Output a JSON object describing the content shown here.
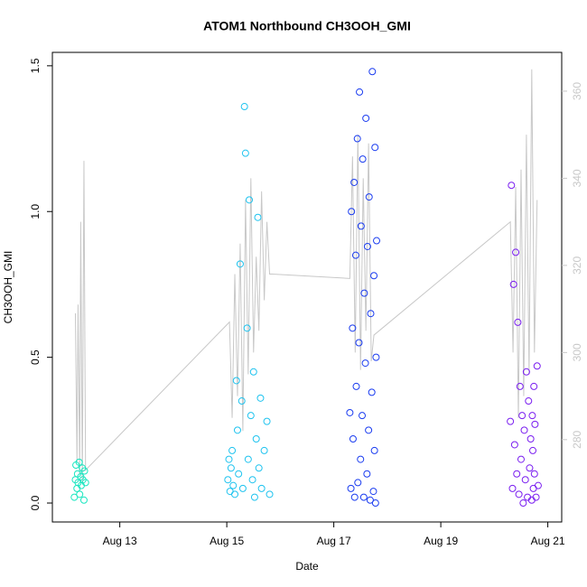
{
  "chart_data": {
    "type": "scatter",
    "title": "ATOM1 Northbound CH3OOH_GMI",
    "x_label": "Date",
    "y_label": "CH3OOH_GMI",
    "xlim": [
      11.74,
      21.26
    ],
    "ylim": [
      -0.065,
      1.546
    ],
    "y2lim": [
      261.1,
      368.9
    ],
    "xticks": [
      {
        "value": 13,
        "label": "Aug 13"
      },
      {
        "value": 15,
        "label": "Aug 15"
      },
      {
        "value": 17,
        "label": "Aug 17"
      },
      {
        "value": 19,
        "label": "Aug 19"
      },
      {
        "value": 21,
        "label": "Aug 21"
      }
    ],
    "yticks": [
      {
        "value": 0,
        "label": "0.0"
      },
      {
        "value": 0.5,
        "label": "0.5"
      },
      {
        "value": 1,
        "label": "1.0"
      },
      {
        "value": 1.5,
        "label": "1.5"
      }
    ],
    "y2ticks": [
      280,
      300,
      320,
      340,
      360
    ],
    "y2_color": "#c8c8c8",
    "series": [
      {
        "color": "#19e6c0",
        "x": [
          12.15,
          12.17,
          12.18,
          12.2,
          12.21,
          12.22,
          12.24,
          12.25,
          12.27,
          12.28,
          12.3,
          12.31,
          12.33,
          12.34,
          12.36
        ],
        "values": [
          0.02,
          0.08,
          0.13,
          0.05,
          0.1,
          0.07,
          0.14,
          0.03,
          0.09,
          0.06,
          0.12,
          0.08,
          0.01,
          0.11,
          0.07
        ]
      },
      {
        "color": "#1ec3ef",
        "x": [
          15.02,
          15.04,
          15.06,
          15.08,
          15.1,
          15.12,
          15.15,
          15.18,
          15.2,
          15.22,
          15.25,
          15.28,
          15.3,
          15.33,
          15.35,
          15.38,
          15.4,
          15.42,
          15.45,
          15.48,
          15.5,
          15.52,
          15.55,
          15.58,
          15.6,
          15.63,
          15.65,
          15.7,
          15.75,
          15.8
        ],
        "values": [
          0.08,
          0.15,
          0.04,
          0.12,
          0.18,
          0.06,
          0.03,
          0.42,
          0.25,
          0.1,
          0.82,
          0.35,
          0.05,
          1.36,
          1.2,
          0.6,
          0.15,
          1.04,
          0.3,
          0.08,
          0.45,
          0.02,
          0.22,
          0.98,
          0.12,
          0.36,
          0.05,
          0.18,
          0.28,
          0.03
        ]
      },
      {
        "color": "#1a3cf0",
        "x": [
          17.3,
          17.32,
          17.33,
          17.35,
          17.36,
          17.38,
          17.39,
          17.41,
          17.42,
          17.44,
          17.45,
          17.47,
          17.48,
          17.5,
          17.51,
          17.53,
          17.54,
          17.56,
          17.57,
          17.59,
          17.6,
          17.62,
          17.63,
          17.65,
          17.66,
          17.68,
          17.69,
          17.71,
          17.72,
          17.74,
          17.75,
          17.76,
          17.77,
          17.78,
          17.79,
          17.8
        ],
        "values": [
          0.31,
          0.05,
          1.0,
          0.6,
          0.22,
          1.1,
          0.02,
          0.85,
          0.4,
          1.25,
          0.07,
          0.55,
          1.41,
          0.15,
          0.95,
          0.3,
          1.18,
          0.02,
          0.72,
          0.48,
          1.32,
          0.1,
          0.88,
          0.25,
          1.05,
          0.01,
          0.65,
          0.38,
          1.48,
          0.04,
          0.78,
          0.18,
          1.22,
          0.0,
          0.5,
          0.9
        ]
      },
      {
        "color": "#7a1ef0",
        "x": [
          20.3,
          20.32,
          20.34,
          20.36,
          20.38,
          20.4,
          20.42,
          20.44,
          20.46,
          20.48,
          20.5,
          20.52,
          20.54,
          20.56,
          20.58,
          20.6,
          20.62,
          20.64,
          20.66,
          20.68,
          20.7,
          20.71,
          20.72,
          20.73,
          20.74,
          20.75,
          20.76,
          20.78,
          20.8,
          20.82
        ],
        "values": [
          0.28,
          1.09,
          0.05,
          0.75,
          0.2,
          0.86,
          0.1,
          0.62,
          0.03,
          0.4,
          0.15,
          0.3,
          0.0,
          0.25,
          0.08,
          0.45,
          0.02,
          0.35,
          0.12,
          0.22,
          0.01,
          0.3,
          0.18,
          0.05,
          0.4,
          0.1,
          0.27,
          0.02,
          0.47,
          0.06
        ]
      },
      {
        "color": "#c8c8c8",
        "axis": "y2",
        "x": [
          12.17,
          12.2,
          12.22,
          12.25,
          12.27,
          12.3,
          12.33,
          12.36,
          15.05,
          15.1,
          15.15,
          15.2,
          15.25,
          15.3,
          15.35,
          15.4,
          15.45,
          15.5,
          15.55,
          15.6,
          15.65,
          15.7,
          15.75,
          15.8,
          15.85,
          17.3,
          17.35,
          17.4,
          17.45,
          17.5,
          17.55,
          17.6,
          17.65,
          17.7,
          17.75,
          20.3,
          20.35,
          20.4,
          20.45,
          20.5,
          20.55,
          20.6,
          20.65,
          20.7,
          20.75,
          20.8
        ],
        "values": [
          309,
          275,
          311,
          272,
          330,
          270,
          344,
          273,
          307,
          285,
          318,
          290,
          325,
          282,
          335,
          295,
          340,
          300,
          322,
          305,
          337,
          312,
          330,
          318,
          318,
          317,
          345,
          300,
          350,
          296,
          340,
          305,
          348,
          298,
          304,
          330,
          300,
          338,
          285,
          342,
          290,
          350,
          295,
          365,
          300,
          335
        ]
      }
    ]
  }
}
